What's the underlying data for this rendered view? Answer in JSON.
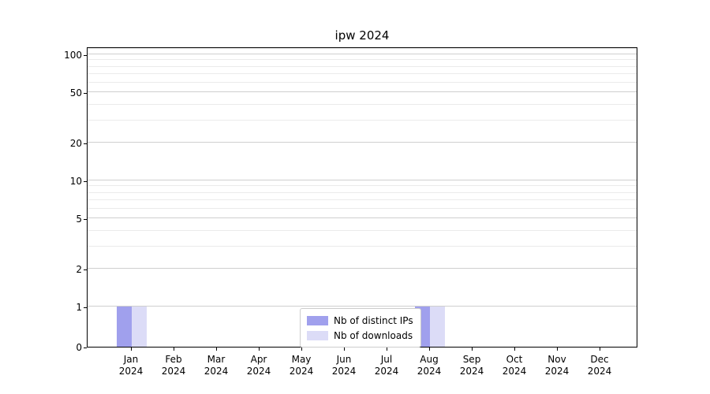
{
  "chart_data": {
    "type": "bar",
    "title": "ipw 2024",
    "x": [
      {
        "month": "Jan",
        "year": "2024"
      },
      {
        "month": "Feb",
        "year": "2024"
      },
      {
        "month": "Mar",
        "year": "2024"
      },
      {
        "month": "Apr",
        "year": "2024"
      },
      {
        "month": "May",
        "year": "2024"
      },
      {
        "month": "Jun",
        "year": "2024"
      },
      {
        "month": "Jul",
        "year": "2024"
      },
      {
        "month": "Aug",
        "year": "2024"
      },
      {
        "month": "Sep",
        "year": "2024"
      },
      {
        "month": "Oct",
        "year": "2024"
      },
      {
        "month": "Nov",
        "year": "2024"
      },
      {
        "month": "Dec",
        "year": "2024"
      }
    ],
    "series": [
      {
        "name": "Nb of distinct IPs",
        "color": "#a0a0ed",
        "values": [
          1,
          0,
          0,
          0,
          0,
          0,
          0,
          1,
          0,
          0,
          0,
          0
        ]
      },
      {
        "name": "Nb of downloads",
        "color": "#dcdcf7",
        "values": [
          1,
          0,
          0,
          0,
          0,
          0,
          0,
          1,
          0,
          0,
          0,
          0
        ]
      }
    ],
    "y_scale": "symlog",
    "y_ticks": [
      0,
      1,
      2,
      5,
      10,
      20,
      50,
      100
    ],
    "y_minor_ticks": [
      3,
      4,
      6,
      7,
      8,
      9,
      30,
      40,
      60,
      70,
      80,
      90,
      110
    ],
    "ylim": [
      0,
      115
    ],
    "grid": true,
    "legend_position": "lower-center"
  }
}
